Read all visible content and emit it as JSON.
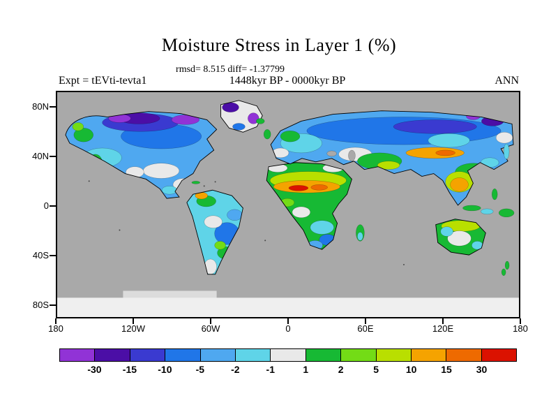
{
  "title": "Moisture Stress in Layer 1 (%)",
  "stats_line": "rmsd= 8.515 diff= -1.37799",
  "header": {
    "left": "Expt = tEVti-tevta1",
    "center": "1448kyr BP - 0000kyr BP",
    "right": "ANN"
  },
  "chart_data": {
    "type": "heatmap",
    "variant": "filled-contour global anomaly map (land only, ocean masked gray)",
    "title": "Moisture Stress in Layer 1 (%)",
    "stats": {
      "rmsd": 8.515,
      "diff": -1.37799
    },
    "experiment": "tEVti-tevta1",
    "comparison": "1448kyr BP - 0000kyr BP",
    "season": "ANN",
    "units": "%",
    "y_axis": {
      "label": "latitude",
      "ticks": [
        "80N",
        "40N",
        "0",
        "40S",
        "80S"
      ]
    },
    "x_axis": {
      "label": "longitude",
      "ticks": [
        "180",
        "120W",
        "60W",
        "0",
        "60E",
        "120E",
        "180"
      ]
    },
    "colorbar": {
      "boundary_labels": [
        "-30",
        "-15",
        "-10",
        "-5",
        "-2",
        "-1",
        "1",
        "2",
        "5",
        "10",
        "15",
        "30"
      ],
      "cell_colors": [
        "#9133d6",
        "#4b0ea6",
        "#3a3ad0",
        "#2076e8",
        "#4fa8f0",
        "#5fd4e8",
        "#e9e9e9",
        "#17b934",
        "#73dc16",
        "#b9df00",
        "#f5a300",
        "#ee6a00",
        "#db1200"
      ],
      "orientation": "horizontal",
      "position": "bottom"
    },
    "map_colors": {
      "ocean_mask": "#a9a9a9",
      "antarctica": "#efefef",
      "sea_ice_strip": "#dcdcdc"
    }
  }
}
